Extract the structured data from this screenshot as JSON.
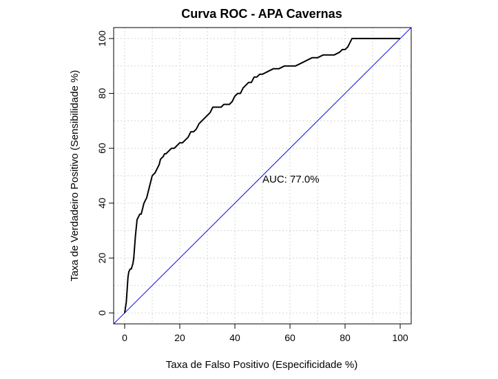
{
  "chart_data": {
    "type": "line",
    "title": "Curva ROC - APA Cavernas",
    "xlabel": "Taxa de Falso Positivo (Especificidade %)",
    "ylabel": "Taxa de Verdadeiro Positivo (Sensibilidade %)",
    "xlim": [
      0,
      100
    ],
    "ylim": [
      0,
      100
    ],
    "xticks": [
      0,
      20,
      40,
      60,
      80,
      100
    ],
    "yticks": [
      0,
      20,
      40,
      60,
      80,
      100
    ],
    "grid": true,
    "annotation": {
      "text": "AUC: 77.0%",
      "x": 50,
      "y": 47.5
    },
    "series": [
      {
        "color": "#000000",
        "x": [
          0,
          0.3,
          0.6,
          0.8,
          1.0,
          1.2,
          1.5,
          2.0,
          2.4,
          3.0,
          3.3,
          3.6,
          3.9,
          4.2,
          4.5,
          5.0,
          5.5,
          6.0,
          6.5,
          7.0,
          7.5,
          8.0,
          8.5,
          9.0,
          10.0,
          11.0,
          12.0,
          12.5,
          13.0,
          14.0,
          14.5,
          15.0,
          16.0,
          17.0,
          18.0,
          19.0,
          20.0,
          21.0,
          22.0,
          23.0,
          24.0,
          25.0,
          26.0,
          27.0,
          28.0,
          29.0,
          30.0,
          31.0,
          32.0,
          33.0,
          34.0,
          35.0,
          36.0,
          37.0,
          38.0,
          39.0,
          40.0,
          41.0,
          42.0,
          43.0,
          44.0,
          45.0,
          46.0,
          47.0,
          48.0,
          49.0,
          50.0,
          52.0,
          54.0,
          56.0,
          58.0,
          60.0,
          62.0,
          64.0,
          66.0,
          68.0,
          70.0,
          72.0,
          74.0,
          76.0,
          78.0,
          79.0,
          80.0,
          81.0,
          82.0,
          82.5,
          84.0,
          90.0,
          100.0
        ],
        "y": [
          0,
          2,
          4,
          7,
          10,
          13,
          15,
          16,
          16,
          18,
          20,
          24,
          28,
          31,
          34,
          35,
          36,
          36,
          38,
          40,
          41,
          42,
          44,
          46,
          50,
          51,
          53,
          54,
          56,
          57,
          58,
          58,
          59,
          60,
          60,
          61,
          62,
          62,
          63,
          64,
          66,
          66,
          67,
          69,
          70,
          71,
          72,
          73,
          75,
          75,
          75,
          75,
          76,
          76,
          76,
          77,
          79,
          80,
          80,
          82,
          83,
          84,
          84,
          86,
          86,
          87,
          87,
          88,
          89,
          89,
          90,
          90,
          90,
          91,
          92,
          93,
          93,
          94,
          94,
          94,
          95,
          96,
          96,
          97,
          99,
          100,
          100,
          100,
          100
        ]
      },
      {
        "color": "#0000ff",
        "x": [
          -5,
          105
        ],
        "y": [
          -5,
          105
        ]
      }
    ]
  }
}
